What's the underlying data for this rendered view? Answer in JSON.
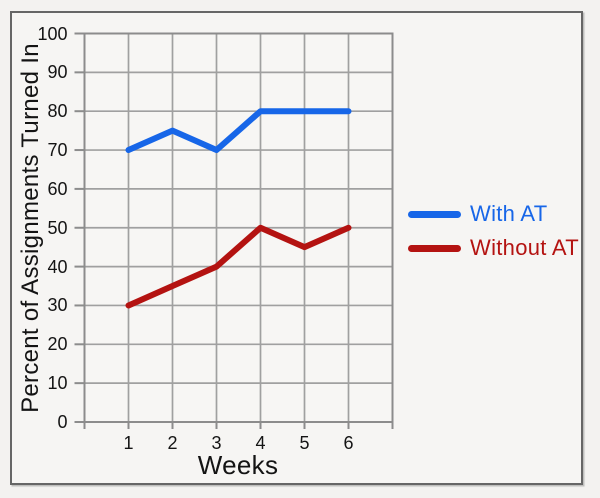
{
  "chart_data": {
    "type": "line",
    "x": [
      1,
      2,
      3,
      4,
      5,
      6
    ],
    "x_tick_labels": [
      "1",
      "2",
      "3",
      "4",
      "5",
      "6"
    ],
    "yticks": [
      0,
      10,
      20,
      30,
      40,
      50,
      60,
      70,
      80,
      90,
      100
    ],
    "ylim": [
      0,
      100
    ],
    "ytick_step": 10,
    "series": [
      {
        "name": "With AT",
        "color": "#1766e8",
        "values": [
          70,
          75,
          70,
          80,
          80,
          80
        ]
      },
      {
        "name": "Without AT",
        "color": "#b41311",
        "values": [
          30,
          35,
          40,
          50,
          45,
          50
        ]
      }
    ],
    "title": "",
    "xlabel": "Weeks",
    "ylabel": "Percent of Assignments Turned In",
    "grid": true,
    "legend": {
      "position": "right",
      "entries": [
        {
          "label": "With AT",
          "color": "#1766e8"
        },
        {
          "label": "Without AT",
          "color": "#b41311"
        }
      ]
    }
  },
  "colors": {
    "page_background": "#f3f2f0",
    "frame_background": "#f6f5f3",
    "plot_background": "#f7f6f4",
    "gridline": "#a0a0a0",
    "axis": "#8c8c8c",
    "text": "#141414",
    "frame_border": "#666666"
  }
}
